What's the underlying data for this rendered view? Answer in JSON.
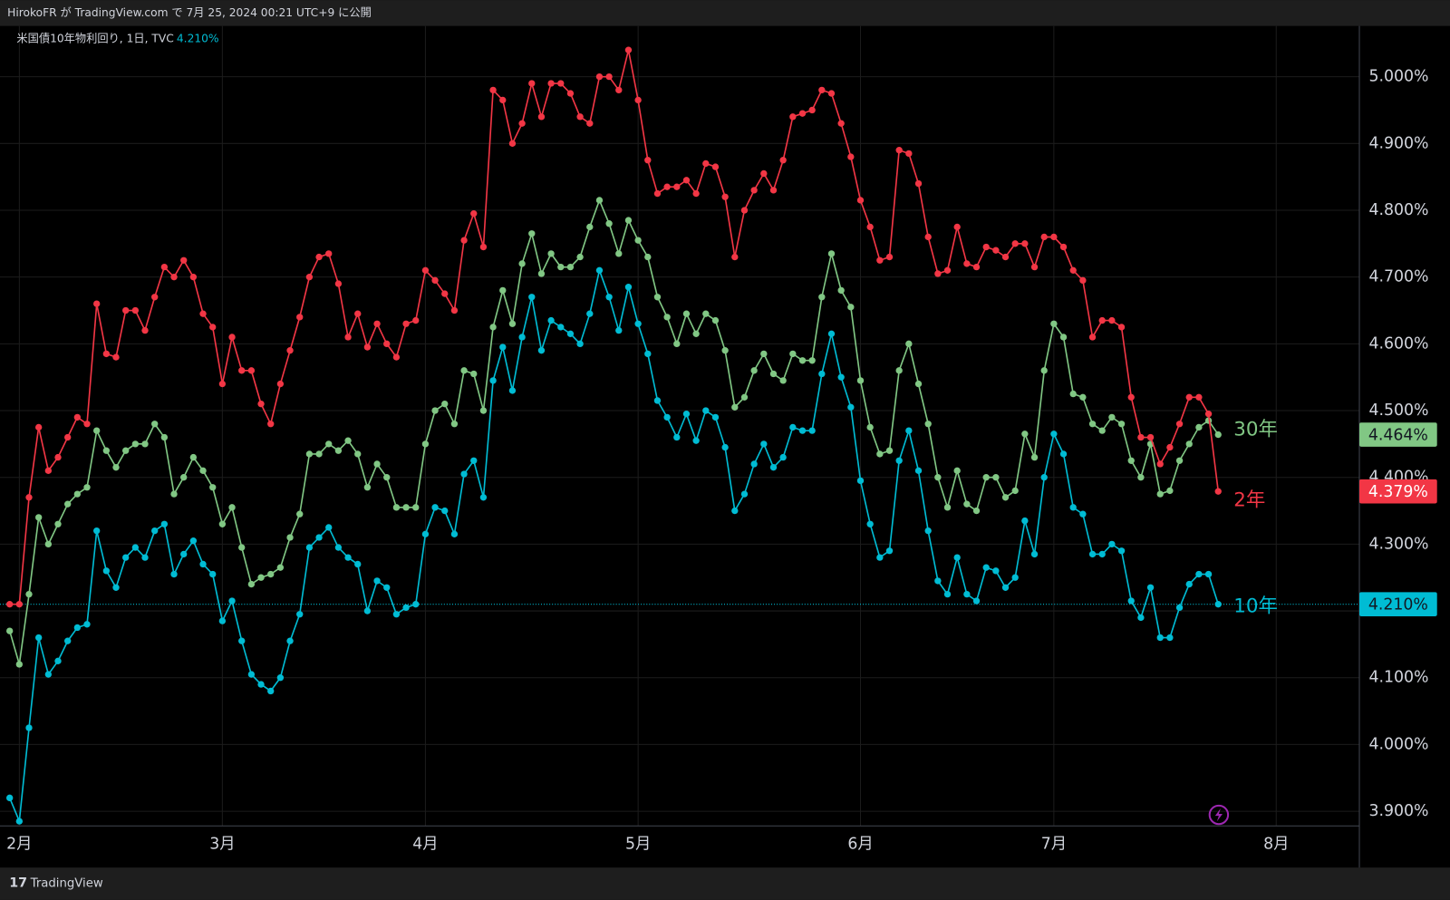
{
  "chart_data": {
    "type": "line",
    "header": "HirokoFR が TradingView.com で 7月 25, 2024 00:21 UTC+9 に公開",
    "legend_title": "米国債10年物利回り, 1日, TVC",
    "footer": "TradingView",
    "xlim": [
      -1,
      139.6
    ],
    "xticks": [
      {
        "value": 1,
        "label": "2月"
      },
      {
        "value": 22,
        "label": "3月"
      },
      {
        "value": 43,
        "label": "4月"
      },
      {
        "value": 65,
        "label": "5月"
      },
      {
        "value": 88,
        "label": "6月"
      },
      {
        "value": 108,
        "label": "7月"
      },
      {
        "value": 131,
        "label": "8月"
      }
    ],
    "ylim": [
      3.878,
      5.076
    ],
    "yticks": [
      {
        "value": 3.9,
        "label": "3.900%"
      },
      {
        "value": 4.0,
        "label": "4.000%"
      },
      {
        "value": 4.1,
        "label": "4.100%"
      },
      {
        "value": 4.2,
        "label": "4.200%"
      },
      {
        "value": 4.3,
        "label": "4.300%"
      },
      {
        "value": 4.4,
        "label": "4.400%"
      },
      {
        "value": 4.5,
        "label": "4.500%"
      },
      {
        "value": 4.6,
        "label": "4.600%"
      },
      {
        "value": 4.7,
        "label": "4.700%"
      },
      {
        "value": 4.8,
        "label": "4.800%"
      },
      {
        "value": 4.9,
        "label": "4.900%"
      },
      {
        "value": 5.0,
        "label": "5.000%"
      }
    ],
    "grid": true,
    "series": [
      {
        "name": "2年",
        "color": "#f23645",
        "value_label": "4.379%",
        "values": [
          4.21,
          4.21,
          4.37,
          4.475,
          4.41,
          4.43,
          4.46,
          4.49,
          4.48,
          4.66,
          4.585,
          4.58,
          4.65,
          4.65,
          4.62,
          4.67,
          4.715,
          4.7,
          4.725,
          4.7,
          4.645,
          4.625,
          4.54,
          4.61,
          4.56,
          4.56,
          4.51,
          4.48,
          4.54,
          4.59,
          4.64,
          4.7,
          4.73,
          4.735,
          4.69,
          4.61,
          4.645,
          4.595,
          4.63,
          4.6,
          4.58,
          4.63,
          4.635,
          4.71,
          4.695,
          4.675,
          4.65,
          4.755,
          4.795,
          4.745,
          4.98,
          4.965,
          4.9,
          4.93,
          4.99,
          4.94,
          4.99,
          4.99,
          4.975,
          4.94,
          4.93,
          5.0,
          5.0,
          4.98,
          5.04,
          4.965,
          4.875,
          4.825,
          4.835,
          4.835,
          4.845,
          4.825,
          4.87,
          4.865,
          4.82,
          4.73,
          4.8,
          4.83,
          4.855,
          4.83,
          4.875,
          4.94,
          4.945,
          4.95,
          4.98,
          4.975,
          4.93,
          4.88,
          4.815,
          4.775,
          4.725,
          4.73,
          4.89,
          4.885,
          4.84,
          4.76,
          4.705,
          4.71,
          4.775,
          4.72,
          4.715,
          4.745,
          4.74,
          4.73,
          4.75,
          4.75,
          4.715,
          4.76,
          4.76,
          4.745,
          4.71,
          4.695,
          4.61,
          4.635,
          4.635,
          4.625,
          4.52,
          4.46,
          4.46,
          4.42,
          4.445,
          4.48,
          4.52,
          4.52,
          4.495,
          4.379
        ]
      },
      {
        "name": "10年",
        "color": "#00bcd4",
        "value_label": "4.210%",
        "values": [
          3.92,
          3.885,
          4.025,
          4.16,
          4.105,
          4.125,
          4.155,
          4.175,
          4.18,
          4.32,
          4.26,
          4.235,
          4.28,
          4.295,
          4.28,
          4.32,
          4.33,
          4.255,
          4.285,
          4.305,
          4.27,
          4.255,
          4.185,
          4.215,
          4.155,
          4.105,
          4.09,
          4.08,
          4.1,
          4.155,
          4.195,
          4.295,
          4.31,
          4.325,
          4.295,
          4.28,
          4.27,
          4.2,
          4.245,
          4.235,
          4.195,
          4.205,
          4.21,
          4.315,
          4.355,
          4.35,
          4.315,
          4.405,
          4.425,
          4.37,
          4.545,
          4.595,
          4.53,
          4.61,
          4.67,
          4.59,
          4.635,
          4.625,
          4.615,
          4.6,
          4.645,
          4.71,
          4.67,
          4.62,
          4.685,
          4.63,
          4.585,
          4.515,
          4.49,
          4.46,
          4.495,
          4.455,
          4.5,
          4.49,
          4.445,
          4.35,
          4.375,
          4.42,
          4.45,
          4.415,
          4.43,
          4.475,
          4.47,
          4.47,
          4.555,
          4.615,
          4.55,
          4.505,
          4.395,
          4.33,
          4.28,
          4.29,
          4.425,
          4.47,
          4.41,
          4.32,
          4.245,
          4.225,
          4.28,
          4.225,
          4.215,
          4.265,
          4.26,
          4.235,
          4.25,
          4.335,
          4.285,
          4.4,
          4.465,
          4.435,
          4.355,
          4.345,
          4.285,
          4.285,
          4.3,
          4.29,
          4.215,
          4.19,
          4.235,
          4.16,
          4.16,
          4.205,
          4.24,
          4.255,
          4.255,
          4.21
        ]
      },
      {
        "name": "30年",
        "color": "#81c784",
        "value_label": "4.464%",
        "values": [
          4.17,
          4.12,
          4.225,
          4.34,
          4.3,
          4.33,
          4.36,
          4.375,
          4.385,
          4.47,
          4.44,
          4.415,
          4.44,
          4.45,
          4.45,
          4.48,
          4.46,
          4.375,
          4.4,
          4.43,
          4.41,
          4.385,
          4.33,
          4.355,
          4.295,
          4.24,
          4.25,
          4.255,
          4.265,
          4.31,
          4.345,
          4.435,
          4.435,
          4.45,
          4.44,
          4.455,
          4.435,
          4.385,
          4.42,
          4.4,
          4.355,
          4.355,
          4.355,
          4.45,
          4.5,
          4.51,
          4.48,
          4.56,
          4.555,
          4.5,
          4.625,
          4.68,
          4.63,
          4.72,
          4.765,
          4.705,
          4.735,
          4.715,
          4.715,
          4.73,
          4.775,
          4.815,
          4.78,
          4.735,
          4.785,
          4.755,
          4.73,
          4.67,
          4.64,
          4.6,
          4.645,
          4.615,
          4.645,
          4.635,
          4.59,
          4.505,
          4.52,
          4.56,
          4.585,
          4.555,
          4.545,
          4.585,
          4.575,
          4.575,
          4.67,
          4.735,
          4.68,
          4.655,
          4.545,
          4.475,
          4.435,
          4.44,
          4.56,
          4.6,
          4.54,
          4.48,
          4.4,
          4.355,
          4.41,
          4.36,
          4.35,
          4.4,
          4.4,
          4.37,
          4.38,
          4.465,
          4.43,
          4.56,
          4.63,
          4.61,
          4.525,
          4.52,
          4.48,
          4.47,
          4.49,
          4.48,
          4.425,
          4.4,
          4.45,
          4.375,
          4.38,
          4.425,
          4.45,
          4.475,
          4.485,
          4.464
        ]
      }
    ]
  }
}
